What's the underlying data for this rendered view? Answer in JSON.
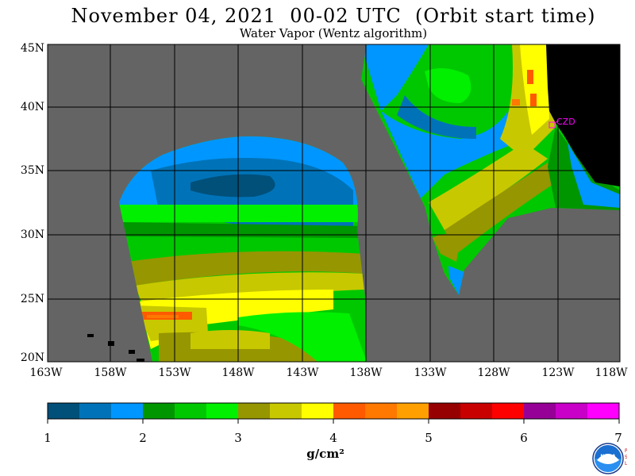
{
  "header": {
    "title": "November 04, 2021  00-02 UTC  (Orbit start time)",
    "subtitle": "Water Vapor (Wentz algorithm)"
  },
  "axes": {
    "lat_labels": [
      "45N",
      "40N",
      "35N",
      "30N",
      "25N",
      "20N"
    ],
    "lon_labels": [
      "163W",
      "158W",
      "153W",
      "148W",
      "143W",
      "138W",
      "133W",
      "128W",
      "123W",
      "118W"
    ],
    "lat_range": [
      20,
      45
    ],
    "lon_range": [
      -163,
      -118
    ]
  },
  "station": {
    "label": "CZD",
    "lat": 38.6,
    "lon": -123.2,
    "color": "#ff00ff"
  },
  "colorbar": {
    "labels": [
      "1",
      "2",
      "3",
      "4",
      "5",
      "6",
      "7"
    ],
    "units": "g/cm²",
    "colors": [
      "#00507a",
      "#0073b8",
      "#0096ff",
      "#009600",
      "#00c800",
      "#00f000",
      "#969600",
      "#c8c800",
      "#ffff00",
      "#ff5a00",
      "#ff7800",
      "#ffa000",
      "#960000",
      "#c80000",
      "#ff0000",
      "#960096",
      "#c800c8",
      "#ff00ff"
    ]
  },
  "map_colors": {
    "no_data": "#646464",
    "land": "#000000",
    "grid": "#000000"
  },
  "logos": {
    "agency": "NOAA",
    "lab": "PSL"
  }
}
